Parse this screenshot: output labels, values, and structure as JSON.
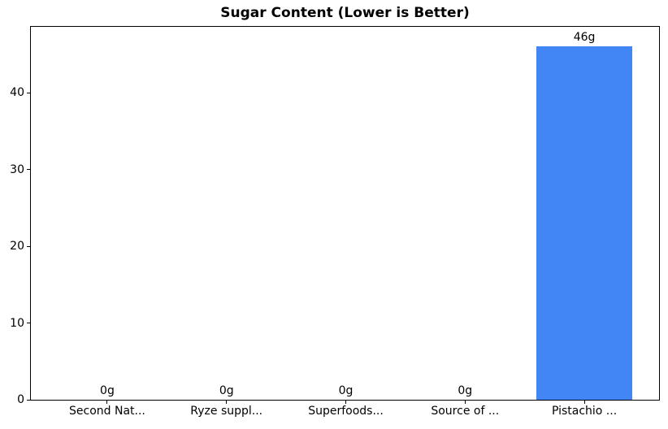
{
  "chart_data": {
    "type": "bar",
    "title": "Sugar Content (Lower is Better)",
    "categories": [
      "Second Nat...",
      "Ryze suppl...",
      "Superfoods...",
      "Source of ...",
      "Pistachio ..."
    ],
    "values": [
      0,
      0,
      0,
      0,
      46
    ],
    "bar_labels": [
      "0g",
      "0g",
      "0g",
      "0g",
      "46g"
    ],
    "unit": "g",
    "xlabel": "",
    "ylabel": "",
    "yticks": [
      0,
      10,
      20,
      30,
      40
    ],
    "ylim": [
      0,
      48.8
    ],
    "bar_color": "#4285f4",
    "grid": false,
    "legend": null
  }
}
